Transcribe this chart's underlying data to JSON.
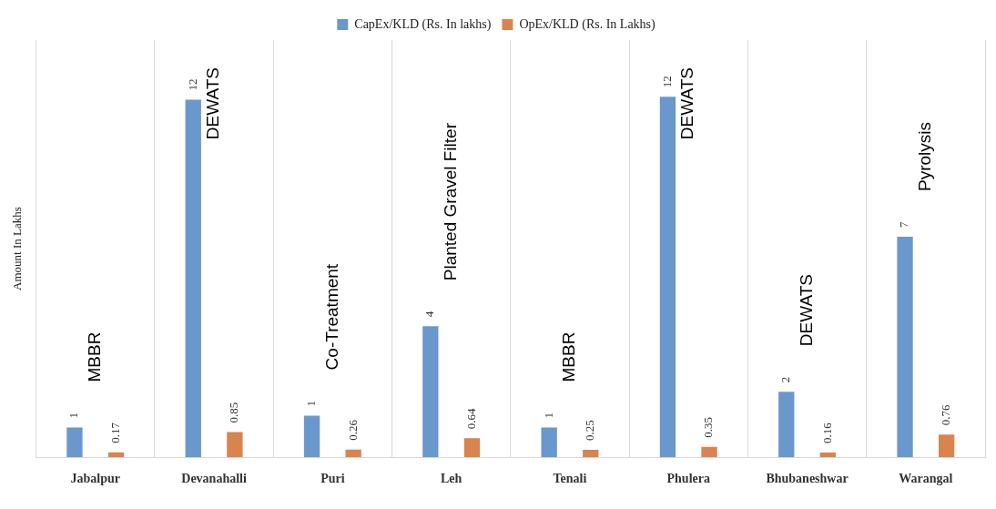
{
  "chart_data": {
    "type": "bar",
    "ylabel": "Amount In Lakhs",
    "categories": [
      "Jabalpur",
      "Devanahalli",
      "Puri",
      "Leh",
      "Tenali",
      "Phulera",
      "Bhubaneshwar",
      "Warangal"
    ],
    "series": [
      {
        "name": "CapEx/KLD (Rs. In lakhs)",
        "color": "#6a98cc",
        "values": [
          1,
          12,
          1.4,
          4.4,
          1,
          12.1,
          2.2,
          7.4
        ],
        "value_labels": [
          "1",
          "12",
          "1",
          "4",
          "1",
          "12",
          "2",
          "7"
        ]
      },
      {
        "name": "OpEx/KLD (Rs. In Lakhs)",
        "color": "#d9844f",
        "values": [
          0.17,
          0.85,
          0.26,
          0.64,
          0.25,
          0.35,
          0.16,
          0.76
        ],
        "value_labels": [
          "0.17",
          "0.85",
          "0.26",
          "0.64",
          "0.25",
          "0.35",
          "0.16",
          "0.76"
        ]
      }
    ],
    "annotations": [
      "MBBR",
      "DEWATS",
      "Co-Treatment",
      "Planted Gravel Filter",
      "MBBR",
      "DEWATS",
      "DEWATS",
      "Pyrolysis"
    ],
    "grid": "x",
    "legend": "top"
  }
}
